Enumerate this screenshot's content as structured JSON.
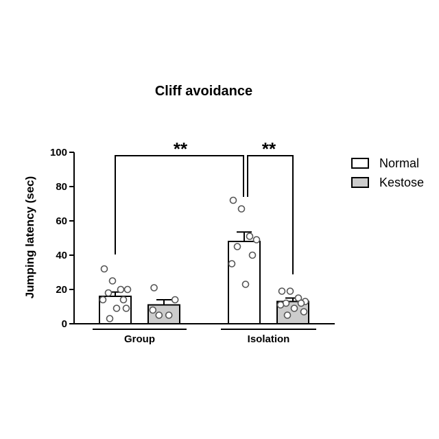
{
  "chart_data": {
    "type": "bar",
    "title": "Cliff avoidance",
    "ylabel": "Jumping latency (sec)",
    "xlabel": "",
    "ylim": [
      0,
      100
    ],
    "yticks": [
      0,
      20,
      40,
      60,
      80,
      100
    ],
    "categories": [
      "Group",
      "Isolation"
    ],
    "series": [
      {
        "name": "Normal",
        "color": "#ffffff",
        "values": [
          16,
          48
        ],
        "errors": [
          2.5,
          5.5
        ],
        "points": [
          [
            32,
            25,
            20,
            20,
            18,
            14,
            14,
            9,
            9,
            3
          ],
          [
            72,
            67,
            51,
            49,
            45,
            40,
            35,
            23
          ]
        ]
      },
      {
        "name": "Kestose",
        "color": "#cccccc",
        "values": [
          11,
          13
        ],
        "errors": [
          3,
          2
        ],
        "points": [
          [
            21,
            14,
            8,
            5,
            5
          ],
          [
            19,
            19,
            15,
            13,
            12,
            12,
            11,
            9,
            7,
            5
          ]
        ]
      }
    ],
    "significance": [
      {
        "label": "**"
      },
      {
        "label": "**"
      }
    ],
    "legend": "right",
    "grid": false
  }
}
